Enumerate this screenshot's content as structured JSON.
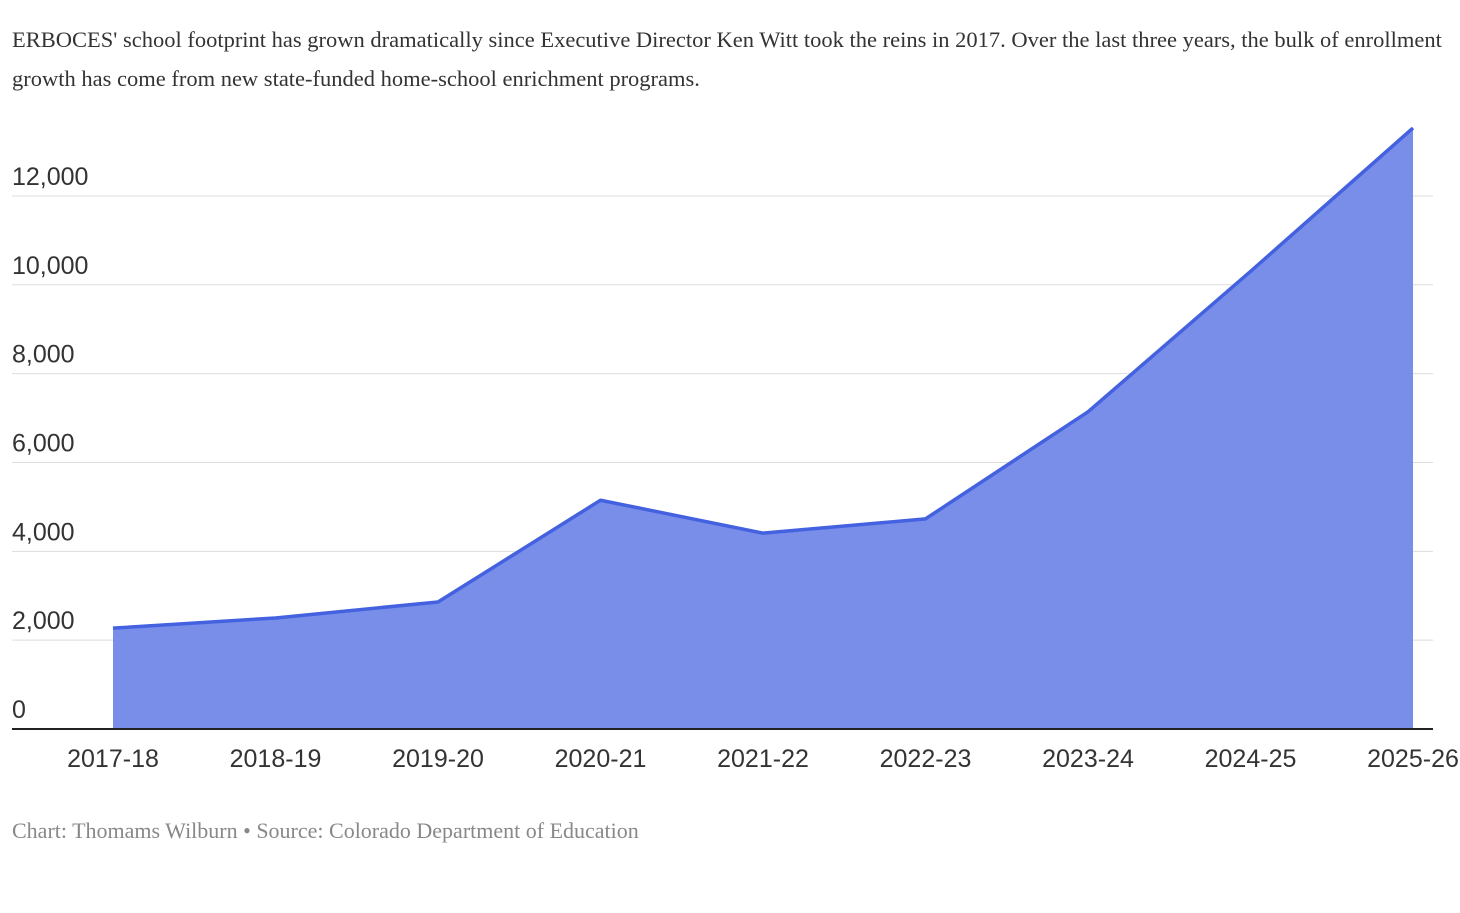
{
  "chart_data": {
    "type": "area",
    "subtitle": "ERBOCES' school footprint has grown dramatically since Executive Director Ken Witt took the reins in 2017. Over the last three years, the bulk of enrollment growth has come from new state-funded home-school enrichment programs.",
    "categories": [
      "2017-18",
      "2018-19",
      "2019-20",
      "2020-21",
      "2021-22",
      "2022-23",
      "2023-24",
      "2024-25",
      "2025-26"
    ],
    "values": [
      2270,
      2500,
      2860,
      5150,
      4410,
      4730,
      7140,
      10300,
      13530
    ],
    "color": "#788ee9",
    "line_color": "#4462e0",
    "ylim": [
      0,
      13530
    ],
    "yticks": [
      0,
      {
        "value": 2000,
        "label": "2,000"
      },
      {
        "value": 4000,
        "label": "4,000"
      },
      {
        "value": 6000,
        "label": "6,000"
      },
      {
        "value": 8000,
        "label": "8,000"
      },
      {
        "value": 10000,
        "label": "10,000"
      },
      {
        "value": 12000,
        "label": "12,000"
      }
    ],
    "grid": true,
    "caption": "Chart: Thomams Wilburn • Source: Colorado Department of Education"
  }
}
